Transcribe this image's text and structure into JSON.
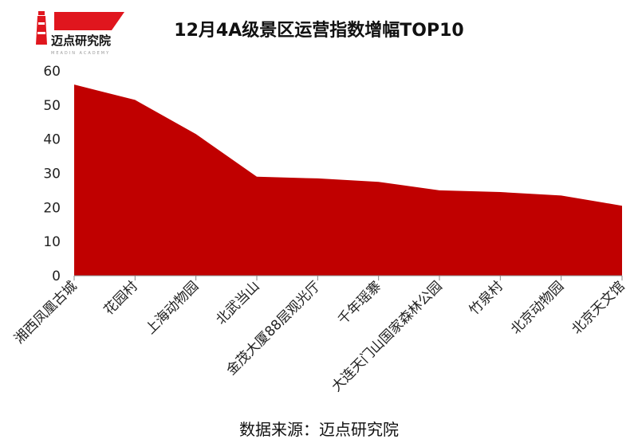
{
  "logo": {
    "name": "迈点研究院",
    "tagline": "MEADIN ACADEMY"
  },
  "chart_data": {
    "type": "area",
    "title": "12月4A级景区运营指数增幅TOP10",
    "categories": [
      "湘西凤凰古城",
      "花园村",
      "上海动物园",
      "北武当山",
      "金茂大厦88层观光厅",
      "千年瑶寨",
      "大连天门山国家森林公园",
      "竹泉村",
      "北京动物园",
      "北京天文馆"
    ],
    "values": [
      56,
      51.5,
      41.5,
      29,
      28.5,
      27.5,
      25,
      24.5,
      23.5,
      20.5
    ],
    "ylim": [
      0,
      60
    ],
    "yticks": [
      0,
      10,
      20,
      30,
      40,
      50,
      60
    ],
    "grid": false,
    "legend": "none",
    "color": "#c00000"
  },
  "source": "数据来源：迈点研究院"
}
